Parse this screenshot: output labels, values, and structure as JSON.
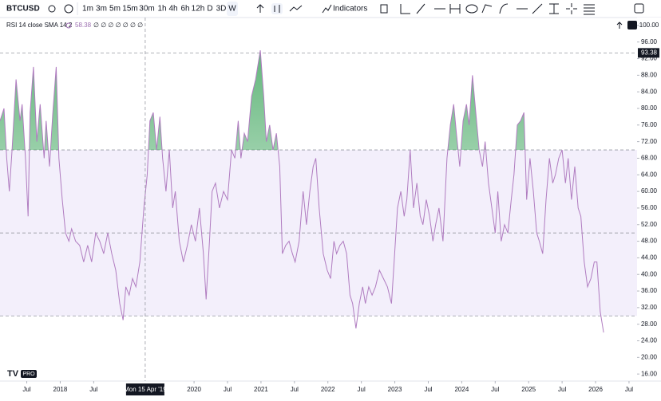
{
  "toolbar": {
    "symbol": "BTCUSD",
    "intervals": [
      "1m",
      "3m",
      "5m",
      "15m",
      "30m",
      "1h",
      "4h",
      "6h",
      "12h",
      "D",
      "3D",
      "W"
    ],
    "indicators": "Indicators"
  },
  "logo_badge": "PRO",
  "chart_data": {
    "type": "line",
    "legend_na": "∅ ∅ ∅ ∅ ∅ ∅ ∅",
    "legend_values": [
      58.38
    ],
    "x": [
      2017.1,
      2017.16,
      2017.2,
      2017.24,
      2017.28,
      2017.34,
      2017.4,
      2017.43,
      2017.48,
      2017.52,
      2017.55,
      2017.6,
      2017.65,
      2017.7,
      2017.76,
      2017.79,
      2017.84,
      2017.89,
      2017.94,
      2017.98,
      2018.03,
      2018.08,
      2018.13,
      2018.17,
      2018.23,
      2018.29,
      2018.35,
      2018.41,
      2018.47,
      2018.53,
      2018.59,
      2018.65,
      2018.71,
      2018.77,
      2018.83,
      2018.89,
      2018.94,
      2018.98,
      2019.03,
      2019.08,
      2019.13,
      2019.19,
      2019.25,
      2019.3,
      2019.34,
      2019.39,
      2019.44,
      2019.49,
      2019.53,
      2019.58,
      2019.63,
      2019.68,
      2019.72,
      2019.78,
      2019.84,
      2019.9,
      2019.96,
      2020.02,
      2020.08,
      2020.14,
      2020.18,
      2020.23,
      2020.27,
      2020.32,
      2020.38,
      2020.44,
      2020.5,
      2020.56,
      2020.61,
      2020.66,
      2020.7,
      2020.75,
      2020.8,
      2020.86,
      2020.92,
      2020.99,
      2021.04,
      2021.08,
      2021.13,
      2021.18,
      2021.23,
      2021.28,
      2021.32,
      2021.37,
      2021.42,
      2021.47,
      2021.51,
      2021.57,
      2021.63,
      2021.68,
      2021.73,
      2021.78,
      2021.82,
      2021.87,
      2021.93,
      2021.99,
      2022.04,
      2022.09,
      2022.13,
      2022.18,
      2022.23,
      2022.28,
      2022.33,
      2022.37,
      2022.42,
      2022.47,
      2022.52,
      2022.56,
      2022.61,
      2022.66,
      2022.71,
      2022.77,
      2022.83,
      2022.89,
      2022.95,
      2022.99,
      2023.04,
      2023.09,
      2023.14,
      2023.18,
      2023.23,
      2023.28,
      2023.33,
      2023.38,
      2023.42,
      2023.47,
      2023.52,
      2023.57,
      2023.61,
      2023.66,
      2023.72,
      2023.78,
      2023.83,
      2023.88,
      2023.92,
      2023.97,
      2024.02,
      2024.07,
      2024.11,
      2024.16,
      2024.21,
      2024.26,
      2024.31,
      2024.35,
      2024.4,
      2024.45,
      2024.5,
      2024.54,
      2024.59,
      2024.64,
      2024.69,
      2024.74,
      2024.78,
      2024.83,
      2024.88,
      2024.93,
      2024.97,
      2025.02,
      2025.07,
      2025.12,
      2025.16,
      2025.21,
      2025.26,
      2025.31,
      2025.36,
      2025.4,
      2025.45,
      2025.5,
      2025.55,
      2025.59,
      2025.64,
      2025.69,
      2025.74,
      2025.78,
      2025.83,
      2025.88,
      2025.93,
      2025.98,
      2026.02,
      2026.07,
      2026.12
    ],
    "series": [
      {
        "name": "RSI 14 close SMA 14 2",
        "color": "#b07cc0",
        "values": [
          77,
          80,
          68,
          60,
          70,
          87,
          77,
          81,
          68,
          54,
          79,
          90,
          72,
          81,
          68,
          77,
          66,
          79,
          90,
          68,
          58,
          50,
          48,
          51,
          48,
          47,
          43,
          47,
          43,
          50,
          48,
          45,
          50,
          45,
          41,
          33,
          29,
          37,
          35,
          39,
          37,
          43,
          56,
          64,
          77,
          79,
          70,
          78,
          68,
          60,
          70,
          56,
          60,
          48,
          43,
          47,
          52,
          48,
          56,
          45,
          34,
          48,
          60,
          62,
          56,
          60,
          58,
          70,
          68,
          77,
          68,
          74,
          72,
          83,
          87,
          94,
          83,
          72,
          76,
          70,
          74,
          66,
          45,
          47,
          48,
          45,
          43,
          48,
          60,
          52,
          60,
          66,
          68,
          56,
          45,
          41,
          39,
          48,
          45,
          47,
          48,
          45,
          35,
          33,
          27,
          33,
          37,
          33,
          37,
          35,
          37,
          41,
          39,
          37,
          33,
          43,
          56,
          60,
          54,
          58,
          70,
          56,
          62,
          54,
          52,
          58,
          54,
          48,
          52,
          56,
          48,
          68,
          76,
          81,
          74,
          66,
          77,
          81,
          76,
          88,
          79,
          70,
          66,
          72,
          62,
          56,
          50,
          60,
          48,
          52,
          50,
          58,
          64,
          76,
          77,
          79,
          58,
          68,
          60,
          50,
          48,
          45,
          58,
          68,
          62,
          64,
          68,
          70,
          62,
          68,
          58,
          66,
          56,
          54,
          43,
          37,
          39,
          43,
          43,
          31,
          26
        ]
      }
    ],
    "xlim": [
      2017.1,
      2026.62
    ],
    "ylim": [
      14.3,
      101.9
    ],
    "yticks": [
      {
        "value": 16,
        "label": "16.00"
      },
      {
        "value": 20,
        "label": "20.00"
      },
      {
        "value": 24,
        "label": "24.00"
      },
      {
        "value": 28,
        "label": "28.00"
      },
      {
        "value": 32,
        "label": "32.00"
      },
      {
        "value": 36,
        "label": "36.00"
      },
      {
        "value": 40,
        "label": "40.00"
      },
      {
        "value": 44,
        "label": "44.00"
      },
      {
        "value": 48,
        "label": "48.00"
      },
      {
        "value": 52,
        "label": "52.00"
      },
      {
        "value": 56,
        "label": "56.00"
      },
      {
        "value": 60,
        "label": "60.00"
      },
      {
        "value": 64,
        "label": "64.00"
      },
      {
        "value": 68,
        "label": "68.00"
      },
      {
        "value": 72,
        "label": "72.00"
      },
      {
        "value": 76,
        "label": "76.00"
      },
      {
        "value": 80,
        "label": "80.00"
      },
      {
        "value": 84,
        "label": "84.00"
      },
      {
        "value": 88,
        "label": "88.00"
      },
      {
        "value": 92,
        "label": "92.00"
      },
      {
        "value": 96,
        "label": "96.00"
      },
      {
        "value": 100,
        "label": "100.00"
      }
    ],
    "xticks": [
      {
        "value": 2017.5,
        "label": "Jul"
      },
      2018,
      {
        "value": 2018.5,
        "label": "Jul"
      },
      2020,
      {
        "value": 2020.5,
        "label": "Jul"
      },
      2021,
      {
        "value": 2021.5,
        "label": "Jul"
      },
      2022,
      {
        "value": 2022.5,
        "label": "Jul"
      },
      2023,
      {
        "value": 2023.5,
        "label": "Jul"
      },
      2024,
      {
        "value": 2024.5,
        "label": "Jul"
      },
      2025,
      {
        "value": 2025.5,
        "label": "Jul"
      },
      2026,
      {
        "value": 2026.5,
        "label": "Jul"
      }
    ],
    "levels": [
      70,
      50,
      30
    ],
    "crosshair": {
      "x": {
        "value": 2019.27,
        "label": "Mon 15 Apr '19"
      },
      "y": 93.38
    }
  }
}
